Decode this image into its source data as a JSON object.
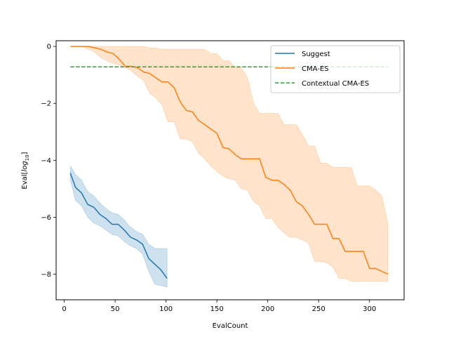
{
  "chart_data": {
    "type": "line",
    "xlabel": "EvalCount",
    "ylabel_prefix": "Eval[",
    "ylabel_log": "log",
    "ylabel_sub": "10",
    "ylabel_suffix": "]",
    "xlim": [
      -8,
      334
    ],
    "ylim": [
      -8.9,
      0.2
    ],
    "x_ticks": [
      0,
      50,
      100,
      150,
      200,
      250,
      300
    ],
    "y_ticks": [
      0,
      -2,
      -4,
      -6,
      -8
    ],
    "legend_position": "upper right",
    "series": [
      {
        "name": "Suggest",
        "color": "#1f77b4",
        "style": "solid",
        "x": [
          6,
          11,
          17,
          23,
          29,
          35,
          41,
          47,
          53,
          59,
          65,
          71,
          77,
          83,
          89,
          95,
          101
        ],
        "y": [
          -4.45,
          -4.95,
          -5.15,
          -5.55,
          -5.65,
          -5.9,
          -6.05,
          -6.25,
          -6.25,
          -6.45,
          -6.7,
          -6.8,
          -6.95,
          -7.45,
          -7.65,
          -7.85,
          -8.15
        ],
        "upper": [
          -4.2,
          -4.5,
          -4.7,
          -5.1,
          -5.25,
          -5.5,
          -5.7,
          -5.85,
          -5.9,
          -6.1,
          -6.35,
          -6.5,
          -6.6,
          -6.95,
          -7.1,
          -7.1,
          -7.1
        ],
        "lower": [
          -4.7,
          -5.4,
          -5.6,
          -6.0,
          -6.2,
          -6.3,
          -6.45,
          -6.6,
          -6.65,
          -6.85,
          -7.0,
          -7.1,
          -7.3,
          -7.9,
          -8.35,
          -8.4,
          -8.45
        ]
      },
      {
        "name": "CMA-ES",
        "color": "#ff7f0e",
        "style": "solid",
        "x": [
          6,
          12,
          18,
          24,
          30,
          36,
          42,
          48,
          54,
          60,
          66,
          72,
          78,
          84,
          90,
          96,
          102,
          108,
          114,
          120,
          126,
          132,
          138,
          144,
          150,
          156,
          162,
          168,
          174,
          180,
          186,
          192,
          198,
          204,
          210,
          216,
          222,
          228,
          234,
          240,
          246,
          252,
          258,
          264,
          270,
          276,
          282,
          288,
          294,
          300,
          306,
          312,
          318
        ],
        "y": [
          0.0,
          0.0,
          0.0,
          0.0,
          -0.05,
          -0.1,
          -0.2,
          -0.25,
          -0.45,
          -0.7,
          -0.7,
          -0.75,
          -0.9,
          -0.95,
          -1.1,
          -1.25,
          -1.25,
          -1.45,
          -1.95,
          -2.25,
          -2.3,
          -2.6,
          -2.75,
          -2.9,
          -3.05,
          -3.55,
          -3.6,
          -3.8,
          -3.95,
          -3.95,
          -3.95,
          -3.95,
          -4.6,
          -4.7,
          -4.7,
          -4.85,
          -5.05,
          -5.45,
          -5.6,
          -5.9,
          -6.25,
          -6.25,
          -6.25,
          -6.75,
          -6.75,
          -7.2,
          -7.2,
          -7.2,
          -7.2,
          -7.8,
          -7.8,
          -7.9,
          -8.0
        ],
        "upper": [
          0.0,
          0.0,
          0.0,
          0.0,
          0.0,
          0.0,
          0.0,
          0.0,
          0.0,
          0.0,
          0.0,
          0.0,
          0.0,
          -0.05,
          -0.05,
          -0.1,
          -0.1,
          -0.1,
          -0.1,
          -0.1,
          -0.1,
          -0.1,
          -0.1,
          -0.25,
          -0.25,
          -0.5,
          -0.5,
          -0.75,
          -0.75,
          -1.1,
          -2.0,
          -2.35,
          -2.35,
          -2.35,
          -2.35,
          -2.75,
          -2.75,
          -2.75,
          -3.1,
          -3.5,
          -3.5,
          -4.1,
          -4.1,
          -4.25,
          -4.25,
          -4.25,
          -4.25,
          -4.9,
          -4.9,
          -4.9,
          -5.05,
          -5.25,
          -6.2
        ],
        "lower": [
          0.0,
          0.0,
          0.0,
          -0.1,
          -0.2,
          -0.4,
          -0.5,
          -0.6,
          -0.65,
          -0.75,
          -0.85,
          -1.05,
          -1.2,
          -1.65,
          -1.8,
          -2.05,
          -2.65,
          -2.65,
          -3.25,
          -3.25,
          -3.35,
          -3.75,
          -3.95,
          -4.2,
          -4.4,
          -4.55,
          -4.65,
          -4.7,
          -5.0,
          -5.05,
          -5.45,
          -5.6,
          -6.05,
          -6.05,
          -6.35,
          -6.55,
          -6.7,
          -6.7,
          -6.8,
          -6.9,
          -7.55,
          -7.55,
          -7.6,
          -7.75,
          -8.15,
          -8.15,
          -8.25,
          -8.25,
          -8.25,
          -8.25,
          -8.25,
          -8.25,
          -8.25
        ]
      },
      {
        "name": "Contextual CMA-ES",
        "color": "#2ca02c",
        "style": "dashed",
        "x": [
          6,
          318
        ],
        "y": [
          -0.72,
          -0.72
        ]
      }
    ]
  }
}
